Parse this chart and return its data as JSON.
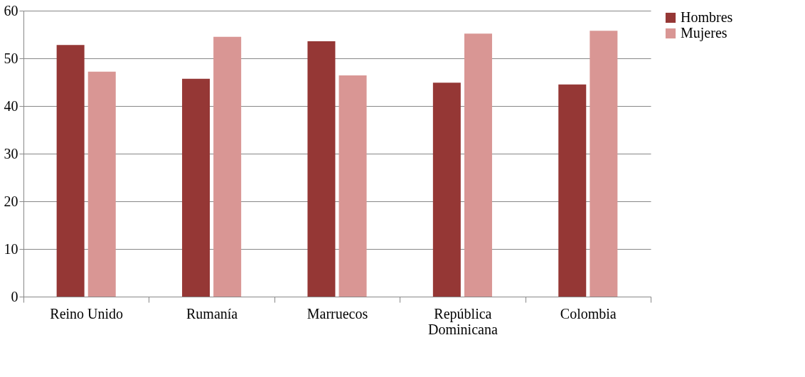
{
  "chart_data": {
    "type": "bar",
    "categories": [
      "Reino Unido",
      "Rumanía",
      "Marruecos",
      "República Dominicana",
      "Colombia"
    ],
    "series": [
      {
        "name": "Hombres",
        "color": "#953735",
        "values": [
          52.8,
          45.7,
          53.6,
          44.9,
          44.5
        ]
      },
      {
        "name": "Mujeres",
        "color": "#d99694",
        "values": [
          47.2,
          54.5,
          46.4,
          55.2,
          55.8
        ]
      }
    ],
    "ylim": [
      0,
      60
    ],
    "yticks": [
      0,
      10,
      20,
      30,
      40,
      50,
      60
    ],
    "grid": "y",
    "legend": "right"
  }
}
